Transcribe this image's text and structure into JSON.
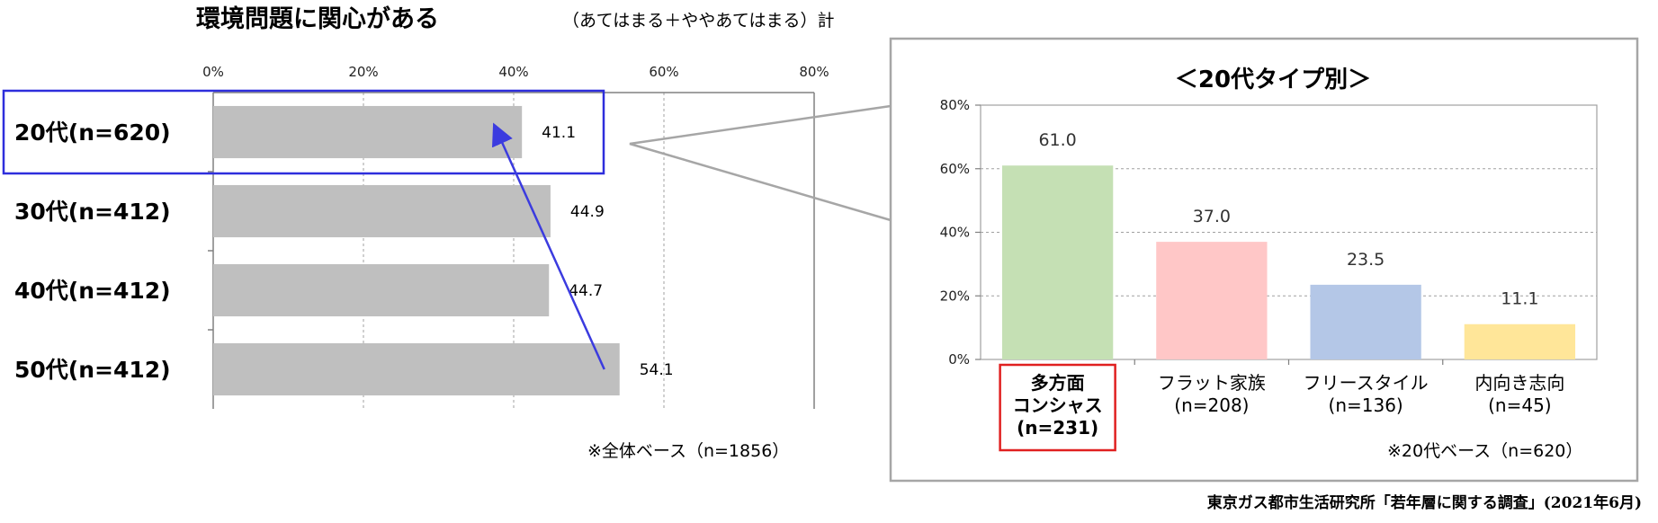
{
  "chart_data": [
    {
      "type": "bar",
      "orientation": "horizontal",
      "title": "環境問題に関心がある",
      "subtitle": "（あてはまる＋ややあてはまる）計",
      "categories": [
        "20代(n=620)",
        "30代(n=412)",
        "40代(n=412)",
        "50代(n=412)"
      ],
      "values": [
        41.1,
        44.9,
        44.7,
        54.1
      ],
      "value_labels": [
        "41.1",
        "44.9",
        "44.7",
        "54.1"
      ],
      "xlim": [
        0,
        80
      ],
      "ticks": [
        "0%",
        "20%",
        "40%",
        "60%",
        "80%"
      ],
      "grid": true,
      "bar_color": "#bfbfbf",
      "highlight_index": 0,
      "highlight_color": "#2e2edc",
      "note": "※全体ベース（n=1856）"
    },
    {
      "type": "bar",
      "title": "＜20代タイプ別＞",
      "categories": [
        {
          "lines": [
            "多方面",
            "コンシャス",
            "(n=231)"
          ],
          "bold": true,
          "boxed": true
        },
        {
          "lines": [
            "フラット家族",
            "(n=208)"
          ],
          "bold": false,
          "boxed": false
        },
        {
          "lines": [
            "フリースタイル",
            "(n=136)"
          ],
          "bold": false,
          "boxed": false
        },
        {
          "lines": [
            "内向き志向",
            "(n=45)"
          ],
          "bold": false,
          "boxed": false
        }
      ],
      "values": [
        61.0,
        37.0,
        23.5,
        11.1
      ],
      "value_labels": [
        "61.0",
        "37.0",
        "23.5",
        "11.1"
      ],
      "colors": [
        "#c5e0b4",
        "#ffc7c7",
        "#b4c7e7",
        "#ffe699"
      ],
      "ylim": [
        0,
        80
      ],
      "ticks": [
        "0%",
        "20%",
        "40%",
        "60%",
        "80%"
      ],
      "grid": true,
      "note": "※20代ベース（n=620）"
    }
  ],
  "source": "東京ガス都市生活研究所「若年層に関する調査」(2021年6月)"
}
